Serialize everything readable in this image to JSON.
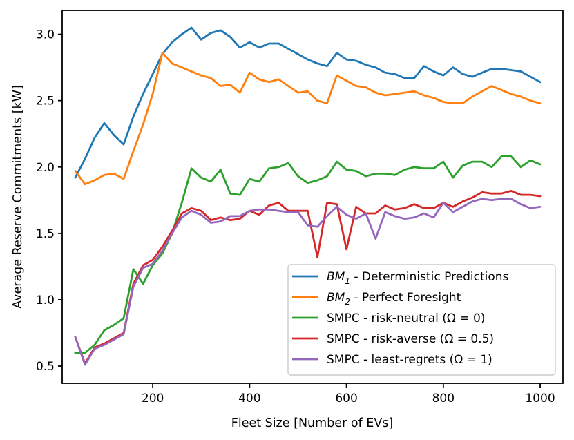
{
  "chart_data": {
    "type": "line",
    "title": "",
    "xlabel": "Fleet Size [Number of EVs]",
    "ylabel": "Average Reserve Commitments [kW]",
    "xlim": [
      13,
      1047
    ],
    "ylim": [
      0.37,
      3.18
    ],
    "grid": false,
    "legend_position": "lower right",
    "xticks": [
      {
        "v": 200,
        "label": "200"
      },
      {
        "v": 400,
        "label": "400"
      },
      {
        "v": 600,
        "label": "600"
      },
      {
        "v": 800,
        "label": "800"
      },
      {
        "v": 1000,
        "label": "1000"
      }
    ],
    "yticks": [
      {
        "v": 0.5,
        "label": "0.5"
      },
      {
        "v": 1.0,
        "label": "1.0"
      },
      {
        "v": 1.5,
        "label": "1.5"
      },
      {
        "v": 2.0,
        "label": "2.0"
      },
      {
        "v": 2.5,
        "label": "2.5"
      },
      {
        "v": 3.0,
        "label": "3.0"
      }
    ],
    "series": [
      {
        "name": "bm1-deterministic-predictions",
        "color": "#1f77b4",
        "legend_parts": [
          {
            "t": "BM",
            "style": "math"
          },
          {
            "t": "1",
            "style": "sub"
          },
          {
            "t": " - Deterministic Predictions",
            "style": "normal"
          }
        ],
        "x": [
          40,
          60,
          80,
          100,
          120,
          140,
          160,
          180,
          200,
          220,
          240,
          260,
          280,
          300,
          320,
          340,
          360,
          380,
          400,
          420,
          440,
          460,
          480,
          500,
          520,
          540,
          560,
          580,
          600,
          620,
          640,
          660,
          680,
          700,
          720,
          740,
          760,
          780,
          800,
          820,
          840,
          860,
          880,
          900,
          920,
          940,
          960,
          980,
          1000
        ],
        "y": [
          1.92,
          2.06,
          2.22,
          2.33,
          2.24,
          2.17,
          2.38,
          2.55,
          2.7,
          2.85,
          2.94,
          3.0,
          3.05,
          2.96,
          3.01,
          3.03,
          2.98,
          2.9,
          2.94,
          2.9,
          2.93,
          2.93,
          2.89,
          2.85,
          2.81,
          2.78,
          2.76,
          2.86,
          2.81,
          2.8,
          2.77,
          2.75,
          2.71,
          2.7,
          2.67,
          2.67,
          2.76,
          2.72,
          2.69,
          2.75,
          2.7,
          2.68,
          2.71,
          2.74,
          2.74,
          2.73,
          2.72,
          2.68,
          2.64
        ]
      },
      {
        "name": "bm2-perfect-foresight",
        "color": "#ff7f0e",
        "legend_parts": [
          {
            "t": "BM",
            "style": "math"
          },
          {
            "t": "2",
            "style": "sub"
          },
          {
            "t": " - Perfect Foresight",
            "style": "normal"
          }
        ],
        "x": [
          40,
          60,
          80,
          100,
          120,
          140,
          160,
          180,
          200,
          220,
          240,
          260,
          280,
          300,
          320,
          340,
          360,
          380,
          400,
          420,
          440,
          460,
          480,
          500,
          520,
          540,
          560,
          580,
          600,
          620,
          640,
          660,
          680,
          700,
          720,
          740,
          760,
          780,
          800,
          820,
          840,
          860,
          880,
          900,
          920,
          940,
          960,
          980,
          1000
        ],
        "y": [
          1.97,
          1.87,
          1.9,
          1.94,
          1.95,
          1.91,
          2.12,
          2.32,
          2.55,
          2.86,
          2.78,
          2.75,
          2.72,
          2.69,
          2.67,
          2.61,
          2.62,
          2.56,
          2.71,
          2.66,
          2.64,
          2.66,
          2.61,
          2.56,
          2.57,
          2.5,
          2.48,
          2.69,
          2.65,
          2.61,
          2.6,
          2.56,
          2.54,
          2.55,
          2.56,
          2.57,
          2.54,
          2.52,
          2.49,
          2.48,
          2.48,
          2.53,
          2.57,
          2.61,
          2.58,
          2.55,
          2.53,
          2.5,
          2.48
        ]
      },
      {
        "name": "smpc-risk-neutral",
        "color": "#2ca02c",
        "legend_parts": [
          {
            "t": "SMPC - risk-neutral (Ω = 0)",
            "style": "normal"
          }
        ],
        "x": [
          40,
          60,
          80,
          100,
          120,
          140,
          160,
          180,
          200,
          220,
          240,
          260,
          280,
          300,
          320,
          340,
          360,
          380,
          400,
          420,
          440,
          460,
          480,
          500,
          520,
          540,
          560,
          580,
          600,
          620,
          640,
          660,
          680,
          700,
          720,
          740,
          760,
          780,
          800,
          820,
          840,
          860,
          880,
          900,
          920,
          940,
          960,
          980,
          1000
        ],
        "y": [
          0.6,
          0.6,
          0.66,
          0.77,
          0.81,
          0.86,
          1.23,
          1.12,
          1.26,
          1.35,
          1.5,
          1.73,
          1.99,
          1.92,
          1.89,
          1.98,
          1.8,
          1.79,
          1.91,
          1.89,
          1.99,
          2.0,
          2.03,
          1.93,
          1.88,
          1.9,
          1.93,
          2.04,
          1.98,
          1.97,
          1.93,
          1.95,
          1.95,
          1.94,
          1.98,
          2.0,
          1.99,
          1.99,
          2.04,
          1.92,
          2.01,
          2.04,
          2.04,
          2.0,
          2.08,
          2.08,
          2.0,
          2.05,
          2.02
        ]
      },
      {
        "name": "smpc-risk-averse",
        "color": "#d62728",
        "legend_parts": [
          {
            "t": "SMPC - risk-averse (Ω = 0.5)",
            "style": "normal"
          }
        ],
        "x": [
          40,
          60,
          80,
          100,
          120,
          140,
          160,
          180,
          200,
          220,
          240,
          260,
          280,
          300,
          320,
          340,
          360,
          380,
          400,
          420,
          440,
          460,
          480,
          500,
          520,
          540,
          560,
          580,
          600,
          620,
          640,
          660,
          680,
          700,
          720,
          740,
          760,
          780,
          800,
          820,
          840,
          860,
          880,
          900,
          920,
          940,
          960,
          980,
          1000
        ],
        "y": [
          0.72,
          0.52,
          0.64,
          0.67,
          0.71,
          0.75,
          1.12,
          1.26,
          1.3,
          1.4,
          1.52,
          1.65,
          1.69,
          1.67,
          1.6,
          1.62,
          1.6,
          1.61,
          1.67,
          1.64,
          1.71,
          1.73,
          1.67,
          1.67,
          1.67,
          1.32,
          1.73,
          1.72,
          1.38,
          1.7,
          1.65,
          1.65,
          1.71,
          1.68,
          1.69,
          1.72,
          1.69,
          1.69,
          1.73,
          1.7,
          1.74,
          1.77,
          1.81,
          1.8,
          1.8,
          1.82,
          1.79,
          1.79,
          1.78
        ]
      },
      {
        "name": "smpc-least-regrets",
        "color": "#9467bd",
        "legend_parts": [
          {
            "t": "SMPC - least-regrets (Ω = 1)",
            "style": "normal"
          }
        ],
        "x": [
          40,
          60,
          80,
          100,
          120,
          140,
          160,
          180,
          200,
          220,
          240,
          260,
          280,
          300,
          320,
          340,
          360,
          380,
          400,
          420,
          440,
          460,
          480,
          500,
          520,
          540,
          560,
          580,
          600,
          620,
          640,
          660,
          680,
          700,
          720,
          740,
          760,
          780,
          800,
          820,
          840,
          860,
          880,
          900,
          920,
          940,
          960,
          980,
          1000
        ],
        "y": [
          0.72,
          0.51,
          0.63,
          0.66,
          0.7,
          0.74,
          1.1,
          1.24,
          1.27,
          1.37,
          1.5,
          1.62,
          1.67,
          1.64,
          1.58,
          1.59,
          1.63,
          1.63,
          1.67,
          1.68,
          1.68,
          1.67,
          1.66,
          1.66,
          1.56,
          1.55,
          1.63,
          1.7,
          1.64,
          1.61,
          1.65,
          1.46,
          1.66,
          1.63,
          1.61,
          1.62,
          1.65,
          1.62,
          1.73,
          1.66,
          1.7,
          1.74,
          1.76,
          1.75,
          1.76,
          1.76,
          1.72,
          1.69,
          1.7
        ]
      }
    ],
    "colors": {
      "spine": "#000000",
      "text": "#000000",
      "legend_border": "#cccccc",
      "legend_background": "#ffffff"
    }
  }
}
